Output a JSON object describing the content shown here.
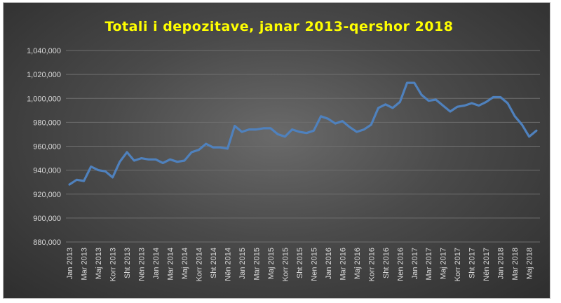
{
  "chart_data": {
    "type": "line",
    "title": "Totali  i depozitave,  janar  2013-qershor  2018",
    "xlabel": "",
    "ylabel": "",
    "ylim": [
      880000,
      1040000
    ],
    "yticks": [
      880000,
      900000,
      920000,
      940000,
      960000,
      980000,
      1000000,
      1020000,
      1040000
    ],
    "ytick_labels": [
      "880,000",
      "900,000",
      "920,000",
      "940,000",
      "960,000",
      "980,000",
      "1,000,000",
      "1,020,000",
      "1,040,000"
    ],
    "x_tick_labels": [
      "Jan 2013",
      "Mar 2013",
      "Maj 2013",
      "Korr 2013",
      "Sht 2013",
      "Nën 2013",
      "Jan 2014",
      "Mar 2014",
      "Maj 2014",
      "Korr 2014",
      "Sht 2014",
      "Nën 2014",
      "Jan 2015",
      "Mar 2015",
      "Maj 2015",
      "Korr 2015",
      "Sht 2015",
      "Nen 2015",
      "Jan 2016",
      "Mar 2016",
      "Maj 2016",
      "Korr 2016",
      "Sht 2016",
      "Nen 2016",
      "Jan 2017",
      "Mar 2017",
      "Maj 2017",
      "Korr 2017",
      "Sht 2017",
      "Nën 2017",
      "Jan 2018",
      "Mar 2018",
      "Maj 2018"
    ],
    "grid": true,
    "legend": "none",
    "series": [
      {
        "color": "#4f81bd",
        "values": [
          928000,
          932000,
          931000,
          943000,
          940000,
          939000,
          934000,
          947000,
          955000,
          948000,
          950000,
          949000,
          949000,
          946000,
          949000,
          947000,
          948000,
          955000,
          957000,
          962000,
          959000,
          959000,
          958000,
          977000,
          972000,
          974000,
          974000,
          975000,
          975000,
          970000,
          968000,
          974000,
          972000,
          971000,
          973000,
          985000,
          983000,
          979000,
          981000,
          976000,
          972000,
          974000,
          978000,
          992000,
          995000,
          992000,
          997000,
          1013000,
          1013000,
          1003000,
          998000,
          999000,
          994000,
          989000,
          993000,
          994000,
          996000,
          994000,
          997000,
          1001000,
          1001000,
          996000,
          985000,
          978000,
          968000,
          973000
        ]
      }
    ]
  }
}
